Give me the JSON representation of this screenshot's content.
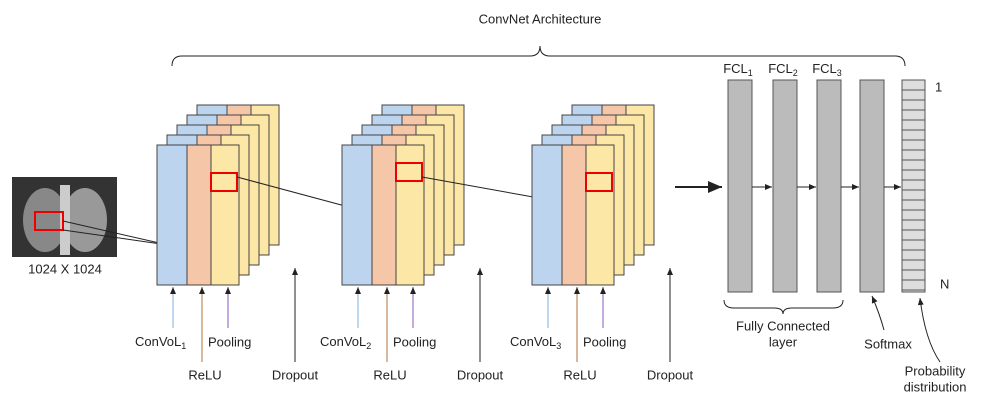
{
  "title": "ConvNet Architecture",
  "input": {
    "label": "1024 X 1024"
  },
  "blocks": [
    {
      "conv": {
        "text": "ConVoL",
        "sub": "1"
      },
      "relu": "ReLU",
      "pooling": "Pooling",
      "dropout": "Dropout"
    },
    {
      "conv": {
        "text": "ConVoL",
        "sub": "2"
      },
      "relu": "ReLU",
      "pooling": "Pooling",
      "dropout": "Dropout"
    },
    {
      "conv": {
        "text": "ConVoL",
        "sub": "3"
      },
      "relu": "ReLU",
      "pooling": "Pooling",
      "dropout": "Dropout"
    }
  ],
  "fc_layers": [
    {
      "text": "FCL",
      "sub": "1"
    },
    {
      "text": "FCL",
      "sub": "2"
    },
    {
      "text": "FCL",
      "sub": "3"
    }
  ],
  "fc_label": [
    "Fully Connected",
    "layer"
  ],
  "softmax": "Softmax",
  "output": {
    "top": "1",
    "bottom": "N",
    "label": [
      "Probability",
      "distribution"
    ]
  }
}
